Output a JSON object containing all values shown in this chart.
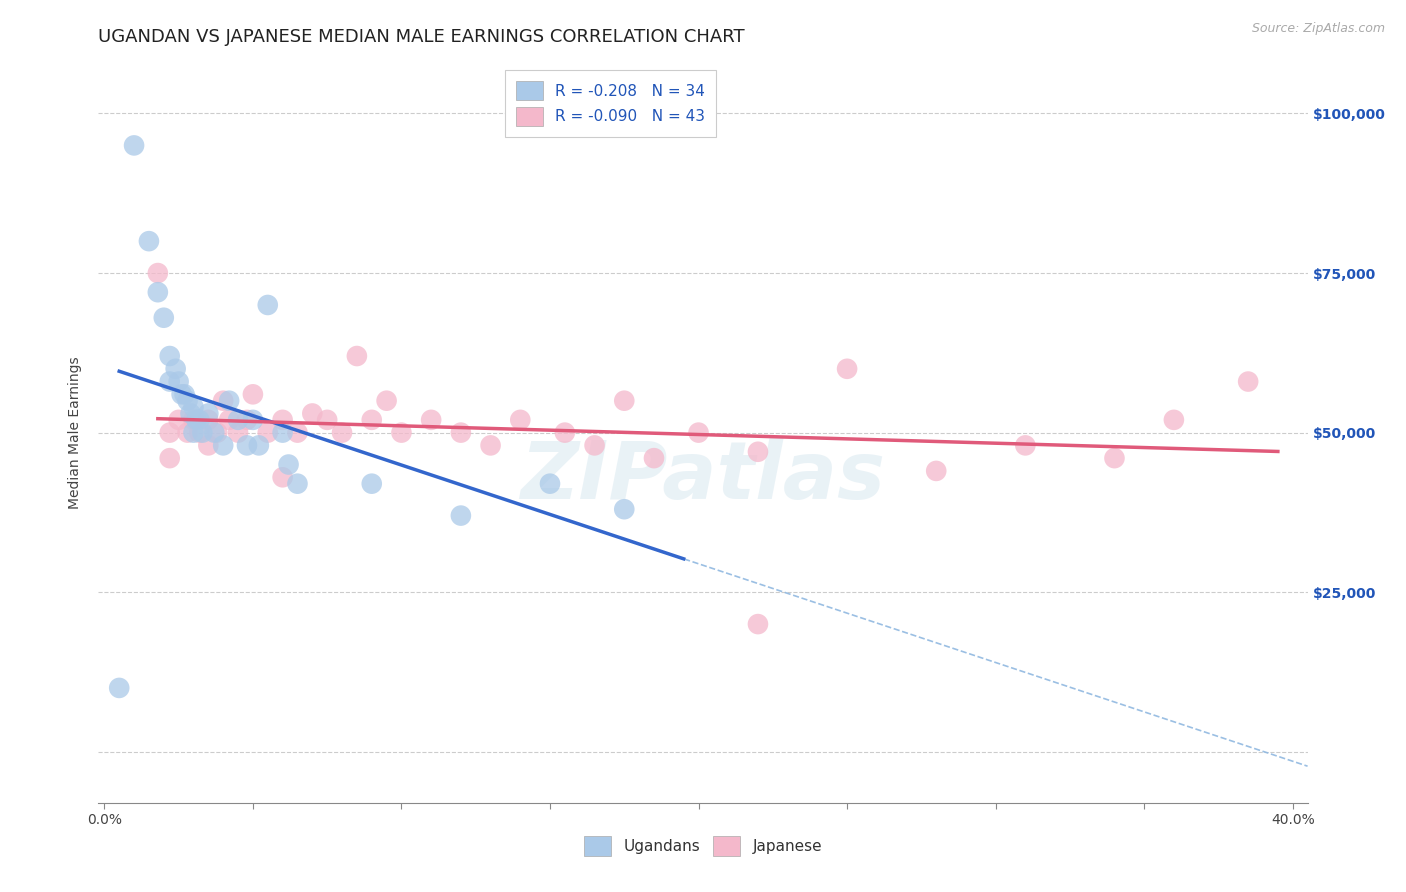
{
  "title": "UGANDAN VS JAPANESE MEDIAN MALE EARNINGS CORRELATION CHART",
  "source": "Source: ZipAtlas.com",
  "ylabel": "Median Male Earnings",
  "xlim": [
    -0.002,
    0.405
  ],
  "ylim": [
    -8000,
    108000
  ],
  "xticks": [
    0.0,
    0.05,
    0.1,
    0.15,
    0.2,
    0.25,
    0.3,
    0.35,
    0.4
  ],
  "xticklabels": [
    "0.0%",
    "",
    "",
    "",
    "",
    "",
    "",
    "",
    "40.0%"
  ],
  "ytick_positions": [
    0,
    25000,
    50000,
    75000,
    100000
  ],
  "ytick_labels": [
    "",
    "$25,000",
    "$50,000",
    "$75,000",
    "$100,000"
  ],
  "ugandan_R": "-0.208",
  "ugandan_N": "34",
  "japanese_R": "-0.090",
  "japanese_N": "43",
  "ugandan_color": "#aac9e8",
  "japanese_color": "#f4b8cb",
  "ugandan_line_color": "#3366cc",
  "japanese_line_color": "#e05a7a",
  "ref_line_color": "#90b8e0",
  "legend_text_color": "#2155b8",
  "background_color": "#ffffff",
  "grid_color": "#cccccc",
  "watermark": "ZIPatlas",
  "ugandan_x": [
    0.01,
    0.015,
    0.018,
    0.02,
    0.022,
    0.022,
    0.024,
    0.025,
    0.026,
    0.027,
    0.028,
    0.029,
    0.03,
    0.03,
    0.031,
    0.032,
    0.033,
    0.035,
    0.037,
    0.04,
    0.042,
    0.045,
    0.048,
    0.05,
    0.052,
    0.055,
    0.06,
    0.062,
    0.065,
    0.09,
    0.12,
    0.15,
    0.175,
    0.005
  ],
  "ugandan_y": [
    95000,
    80000,
    72000,
    68000,
    62000,
    58000,
    60000,
    58000,
    56000,
    56000,
    55000,
    53000,
    54000,
    50000,
    52000,
    52000,
    50000,
    53000,
    50000,
    48000,
    55000,
    52000,
    48000,
    52000,
    48000,
    70000,
    50000,
    45000,
    42000,
    42000,
    37000,
    42000,
    38000,
    10000
  ],
  "japanese_x": [
    0.018,
    0.022,
    0.025,
    0.028,
    0.03,
    0.032,
    0.035,
    0.038,
    0.04,
    0.042,
    0.045,
    0.048,
    0.05,
    0.055,
    0.06,
    0.065,
    0.07,
    0.075,
    0.08,
    0.085,
    0.09,
    0.095,
    0.1,
    0.11,
    0.12,
    0.13,
    0.14,
    0.155,
    0.165,
    0.175,
    0.185,
    0.2,
    0.22,
    0.25,
    0.28,
    0.31,
    0.34,
    0.36,
    0.385,
    0.022,
    0.035,
    0.06,
    0.22
  ],
  "japanese_y": [
    75000,
    50000,
    52000,
    50000,
    52000,
    50000,
    52000,
    50000,
    55000,
    52000,
    50000,
    52000,
    56000,
    50000,
    52000,
    50000,
    53000,
    52000,
    50000,
    62000,
    52000,
    55000,
    50000,
    52000,
    50000,
    48000,
    52000,
    50000,
    48000,
    55000,
    46000,
    50000,
    47000,
    60000,
    44000,
    48000,
    46000,
    52000,
    58000,
    46000,
    48000,
    43000,
    20000
  ],
  "title_fontsize": 13,
  "axis_label_fontsize": 10,
  "tick_fontsize": 10,
  "legend_fontsize": 11
}
